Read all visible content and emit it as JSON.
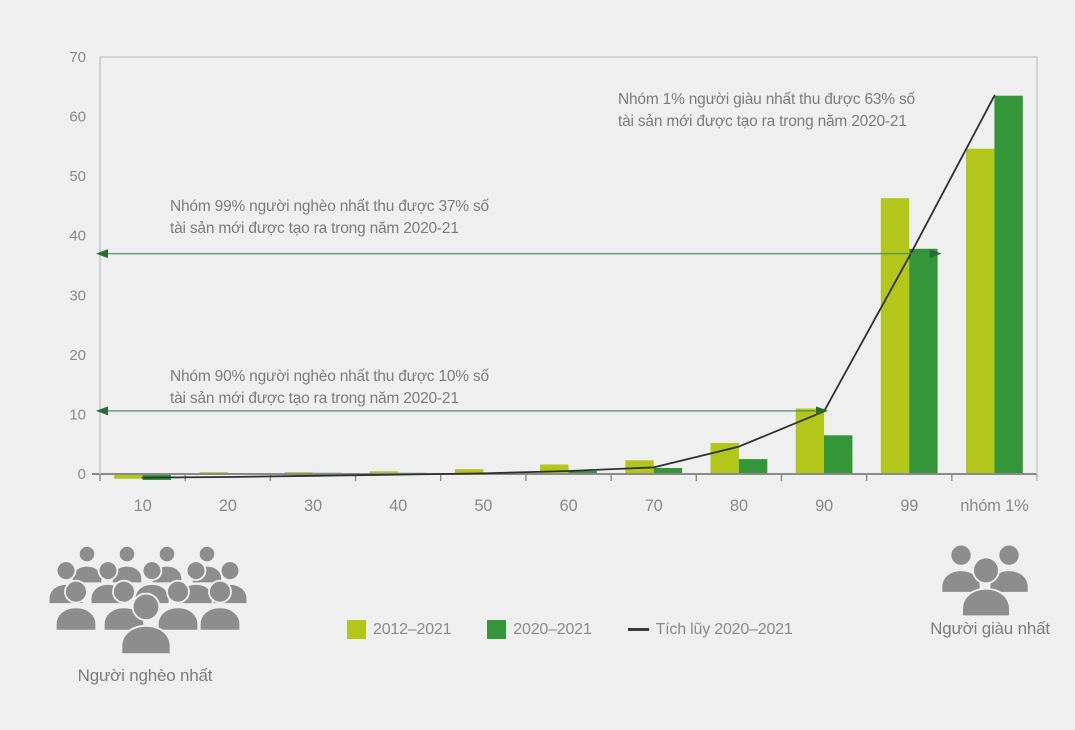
{
  "background": "#efefef",
  "chart_data": {
    "type": "bar",
    "title": "",
    "xlabel": "",
    "ylabel": "",
    "categories": [
      "10",
      "20",
      "30",
      "40",
      "50",
      "60",
      "70",
      "80",
      "90",
      "99",
      "nhóm 1%"
    ],
    "series": [
      {
        "name": "2012–2021",
        "color": "#b2c71a",
        "values": [
          -0.8,
          0.3,
          0.3,
          0.45,
          0.8,
          1.6,
          2.3,
          5.2,
          11,
          46.3,
          54.6
        ]
      },
      {
        "name": "2020–2021",
        "color": "#339638",
        "values": [
          -1.0,
          0.1,
          0.2,
          0.2,
          0.25,
          0.5,
          1.0,
          2.5,
          6.5,
          37.8,
          63.5
        ]
      }
    ],
    "line_series": {
      "name": "Tích lũy 2020–2021",
      "color": "#2f2f2f",
      "values": [
        -0.6,
        -0.5,
        -0.3,
        -0.1,
        0.1,
        0.5,
        1.1,
        4.6,
        10.5,
        36.5,
        63.5
      ]
    },
    "ylim": [
      0,
      70
    ],
    "yticks": [
      0,
      10,
      20,
      30,
      40,
      50,
      60,
      70
    ],
    "grid": false,
    "legend_position": "bottom",
    "annotations": [
      {
        "id": "richest-1pct",
        "line1": "Nhóm 1% người giàu nhất thu được 63% số",
        "line2": "tài sản mới được tạo ra trong năm 2020-21"
      },
      {
        "id": "poorest-99pct",
        "line1": "Nhóm 99% người nghèo nhất thu được 37% số",
        "line2": "tài sản mới được tạo ra trong năm 2020-21"
      },
      {
        "id": "poorest-90pct",
        "line1": "Nhóm 90% người nghèo nhất thu được 10% số",
        "line2": "tài sản mới được tạo ra trong năm 2020-21"
      }
    ],
    "reference_arrows": [
      {
        "value": 37,
        "to_category": "99",
        "points_to": "dark-bar-right",
        "shaft_color": "#4c8a58",
        "head_color": "#2a6b38"
      },
      {
        "value": 10.6,
        "to_category": "90",
        "points_to": "light-bar-right",
        "shaft_color": "#4c8a58",
        "head_color": "#2a6b38"
      }
    ],
    "axis_color": "#8a8a8a",
    "frame_color": "#c3c3c3",
    "text_color": "#7c7c7c"
  },
  "legend": {
    "items": [
      {
        "label": "2012–2021",
        "swatch": "#b2c71a",
        "type": "square"
      },
      {
        "label": "2020–2021",
        "swatch": "#339638",
        "type": "square"
      },
      {
        "label": "Tích lũy 2020–2021",
        "swatch": "#3a3a3a",
        "type": "line"
      }
    ]
  },
  "figures": {
    "left_label": "Người nghèo nhất",
    "right_label": "Người giàu nhất",
    "icon_color": "#8d8d8d"
  }
}
